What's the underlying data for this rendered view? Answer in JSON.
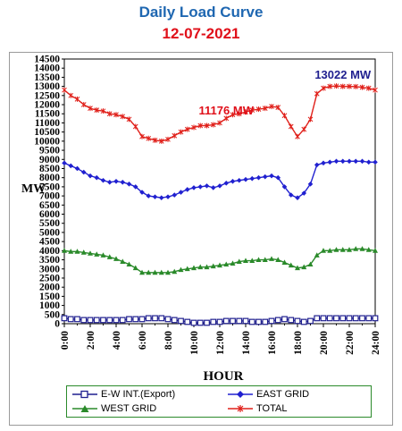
{
  "chart_data": {
    "type": "line",
    "title": "Daily Load Curve",
    "subtitle": "12-07-2021",
    "xlabel": "HOUR",
    "ylabel": "MW",
    "xlim": [
      0,
      24
    ],
    "ylim": [
      0,
      14500
    ],
    "yticks": [
      0,
      500,
      1000,
      1500,
      2000,
      2500,
      3000,
      3500,
      4000,
      4500,
      5000,
      5500,
      6000,
      6500,
      7000,
      7500,
      8000,
      8500,
      9000,
      9500,
      10000,
      10500,
      11000,
      11500,
      12000,
      12500,
      13000,
      13500,
      14000,
      14500
    ],
    "xticks": [
      "0:00",
      "2:00",
      "4:00",
      "6:00",
      "8:00",
      "10:00",
      "12:00",
      "14:00",
      "16:00",
      "18:00",
      "20:00",
      "22:00",
      "24:00"
    ],
    "x": [
      0,
      0.5,
      1,
      1.5,
      2,
      2.5,
      3,
      3.5,
      4,
      4.5,
      5,
      5.5,
      6,
      6.5,
      7,
      7.5,
      8,
      8.5,
      9,
      9.5,
      10,
      10.5,
      11,
      11.5,
      12,
      12.5,
      13,
      13.5,
      14,
      14.5,
      15,
      15.5,
      16,
      16.5,
      17,
      17.5,
      18,
      18.5,
      19,
      19.5,
      20,
      20.5,
      21,
      21.5,
      22,
      22.5,
      23,
      23.5,
      24
    ],
    "series": [
      {
        "name": "E-W INT.(Export)",
        "color": "#1f1f8f",
        "marker": "square-open",
        "values": [
          300,
          250,
          250,
          200,
          200,
          200,
          200,
          200,
          200,
          200,
          250,
          250,
          250,
          300,
          300,
          300,
          250,
          200,
          150,
          100,
          50,
          50,
          50,
          100,
          100,
          150,
          150,
          150,
          150,
          100,
          100,
          100,
          150,
          200,
          250,
          200,
          150,
          100,
          150,
          300,
          300,
          300,
          300,
          300,
          300,
          300,
          300,
          300,
          300
        ]
      },
      {
        "name": "EAST GRID",
        "color": "#2020d0",
        "marker": "diamond",
        "values": [
          8800,
          8650,
          8500,
          8300,
          8100,
          8000,
          7850,
          7750,
          7800,
          7750,
          7650,
          7500,
          7200,
          7000,
          6950,
          6900,
          6950,
          7050,
          7200,
          7350,
          7450,
          7500,
          7550,
          7450,
          7550,
          7700,
          7800,
          7850,
          7900,
          7950,
          8000,
          8050,
          8100,
          8000,
          7500,
          7050,
          6900,
          7150,
          7650,
          8700,
          8800,
          8850,
          8900,
          8900,
          8900,
          8900,
          8900,
          8850,
          8850
        ]
      },
      {
        "name": "WEST GRID",
        "color": "#2a8a2a",
        "marker": "triangle",
        "values": [
          4000,
          3950,
          3950,
          3900,
          3850,
          3800,
          3750,
          3650,
          3550,
          3400,
          3250,
          3050,
          2800,
          2800,
          2800,
          2800,
          2800,
          2850,
          2950,
          3000,
          3050,
          3100,
          3100,
          3150,
          3200,
          3250,
          3300,
          3400,
          3450,
          3450,
          3500,
          3500,
          3550,
          3500,
          3350,
          3200,
          3050,
          3100,
          3250,
          3750,
          4000,
          4000,
          4050,
          4050,
          4050,
          4100,
          4100,
          4050,
          4000
        ]
      },
      {
        "name": "TOTAL",
        "color": "#e0201a",
        "marker": "star",
        "values": [
          12800,
          12500,
          12300,
          12000,
          11800,
          11700,
          11650,
          11500,
          11450,
          11350,
          11200,
          10800,
          10250,
          10150,
          10050,
          10000,
          10100,
          10300,
          10500,
          10650,
          10750,
          10850,
          10850,
          10900,
          11000,
          11250,
          11450,
          11500,
          11600,
          11700,
          11750,
          11800,
          11900,
          11850,
          11400,
          10800,
          10250,
          10650,
          11200,
          12600,
          12900,
          13000,
          13022,
          13000,
          13000,
          12990,
          12950,
          12900,
          12800
        ]
      }
    ],
    "annotations": [
      {
        "text": "11176 MW",
        "color": "#e0101a",
        "x": 12.5,
        "y": 11176
      },
      {
        "text": "13022 MW",
        "color": "#1f1f8f",
        "x": 21.5,
        "y": 13022
      }
    ],
    "legend": "bottom",
    "grid": false
  }
}
